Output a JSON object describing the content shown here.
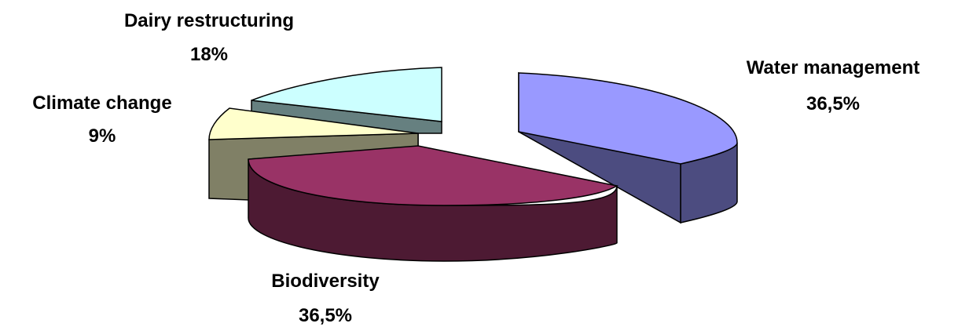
{
  "chart_data": {
    "type": "pie",
    "title": "",
    "style": "3d-exploded",
    "labels": [
      "Water management",
      "Biodiversity",
      "Climate change",
      "Dairy restructuring"
    ],
    "values": [
      36.5,
      36.5,
      9,
      18
    ],
    "value_labels": [
      "36,5%",
      "36,5%",
      "9%",
      "18%"
    ],
    "colors": [
      "#9999ff",
      "#993366",
      "#ffffcc",
      "#ccffff"
    ],
    "side_colors": [
      "#4c4c80",
      "#4d1a33",
      "#808066",
      "#668080"
    ]
  }
}
